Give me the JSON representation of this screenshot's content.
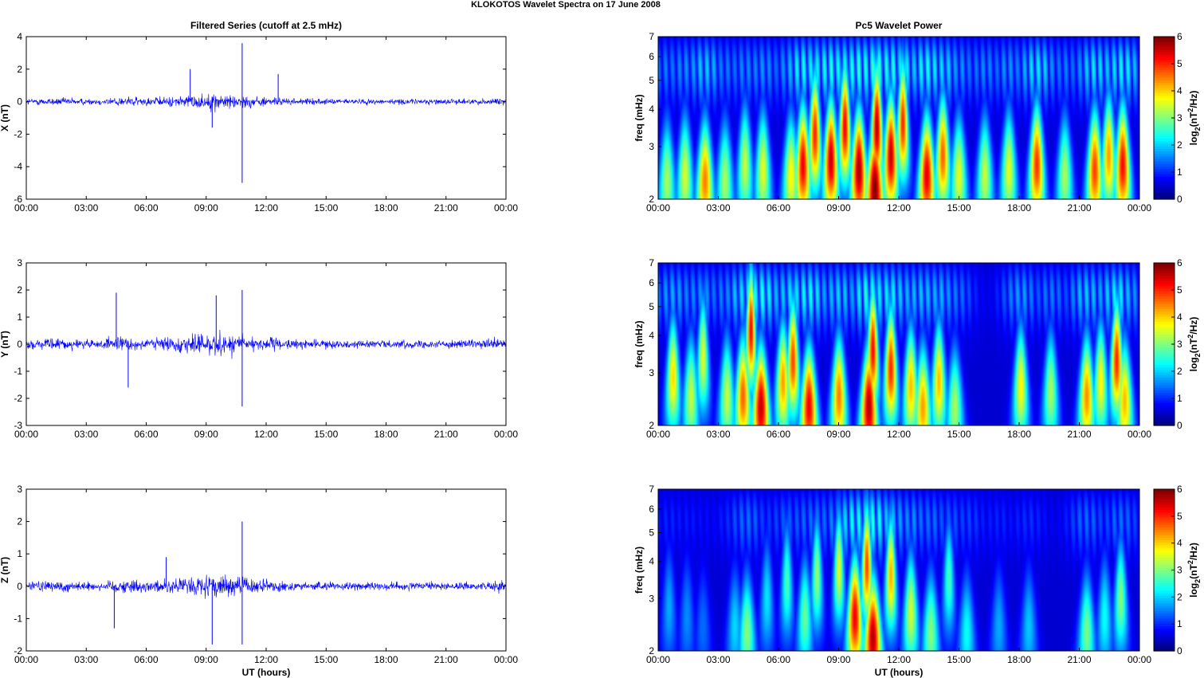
{
  "figure": {
    "suptitle": "KLOKOTOS Wavelet Spectra on 17 June      2008",
    "left_title": "Filtered Series (cutoff at 2.5 mHz)",
    "right_title": "Pc5 Wavelet Power",
    "xlabel": "UT (hours)",
    "freq_ylabel": "freq (mHz)",
    "colorbar_label_base": "log",
    "colorbar_label_sub": "2",
    "colorbar_label_inner": "(nT",
    "colorbar_label_sup": "2",
    "colorbar_label_tail": "/Hz)"
  },
  "chart_data": [
    {
      "type": "line",
      "panel": "X",
      "title": "Filtered Series (cutoff at 2.5 mHz)",
      "ylabel": "X (nT)",
      "xlabel": "",
      "x_ticks": [
        "00:00",
        "03:00",
        "06:00",
        "09:00",
        "12:00",
        "15:00",
        "18:00",
        "21:00",
        "00:00"
      ],
      "xlim_hours": [
        0,
        24
      ],
      "ylim": [
        -6,
        4
      ],
      "y_ticks": [
        -6,
        -4,
        -2,
        0,
        2,
        4
      ],
      "color": "#0000ff",
      "extremes": [
        {
          "t_hours": 10.8,
          "value": 3.6
        },
        {
          "t_hours": 10.8,
          "value": -5.0
        },
        {
          "t_hours": 8.2,
          "value": 2.0
        },
        {
          "t_hours": 12.6,
          "value": 1.7
        },
        {
          "t_hours": 9.3,
          "value": -1.6
        }
      ]
    },
    {
      "type": "line",
      "panel": "Y",
      "ylabel": "Y (nT)",
      "xlabel": "",
      "x_ticks": [
        "00:00",
        "03:00",
        "06:00",
        "09:00",
        "12:00",
        "15:00",
        "18:00",
        "21:00",
        "00:00"
      ],
      "xlim_hours": [
        0,
        24
      ],
      "ylim": [
        -3,
        3
      ],
      "y_ticks": [
        -3,
        -2,
        -1,
        0,
        1,
        2,
        3
      ],
      "color": "#0000ff",
      "extremes": [
        {
          "t_hours": 10.8,
          "value": 2.0
        },
        {
          "t_hours": 10.8,
          "value": -2.3
        },
        {
          "t_hours": 4.5,
          "value": 1.9
        },
        {
          "t_hours": 9.5,
          "value": 1.8
        },
        {
          "t_hours": 5.1,
          "value": -1.6
        }
      ]
    },
    {
      "type": "line",
      "panel": "Z",
      "ylabel": "Z (nT)",
      "xlabel": "UT (hours)",
      "x_ticks": [
        "00:00",
        "03:00",
        "06:00",
        "09:00",
        "12:00",
        "15:00",
        "18:00",
        "21:00",
        "00:00"
      ],
      "xlim_hours": [
        0,
        24
      ],
      "ylim": [
        -2,
        3
      ],
      "y_ticks": [
        -2,
        -1,
        0,
        1,
        2,
        3
      ],
      "color": "#0000ff",
      "extremes": [
        {
          "t_hours": 10.8,
          "value": 2.0
        },
        {
          "t_hours": 10.8,
          "value": -1.8
        },
        {
          "t_hours": 9.3,
          "value": -1.8
        },
        {
          "t_hours": 4.4,
          "value": -1.3
        },
        {
          "t_hours": 7.0,
          "value": 0.9
        }
      ]
    },
    {
      "type": "heatmap",
      "panel": "X",
      "title": "Pc5 Wavelet Power",
      "ylabel": "freq (mHz)",
      "xlabel": "",
      "x_ticks": [
        "00:00",
        "03:00",
        "06:00",
        "09:00",
        "12:00",
        "15:00",
        "18:00",
        "21:00",
        "00:00"
      ],
      "xlim_hours": [
        0,
        24
      ],
      "ylim_mhz": [
        2,
        7
      ],
      "y_scale": "log",
      "y_ticks": [
        2,
        3,
        4,
        5,
        6,
        7
      ],
      "colorbar": {
        "range": [
          0,
          6
        ],
        "ticks": [
          0,
          1,
          2,
          3,
          4,
          5,
          6
        ],
        "colormap": "jet"
      },
      "blobs": [
        {
          "t_hours": 0.4,
          "f_mhz": 2.3,
          "power": 3.0
        },
        {
          "t_hours": 1.3,
          "f_mhz": 2.4,
          "power": 3.3
        },
        {
          "t_hours": 2.3,
          "f_mhz": 2.3,
          "power": 4.4
        },
        {
          "t_hours": 3.3,
          "f_mhz": 2.3,
          "power": 3.0
        },
        {
          "t_hours": 4.3,
          "f_mhz": 2.6,
          "power": 3.2
        },
        {
          "t_hours": 5.2,
          "f_mhz": 2.5,
          "power": 3.4
        },
        {
          "t_hours": 6.6,
          "f_mhz": 2.4,
          "power": 3.6
        },
        {
          "t_hours": 7.2,
          "f_mhz": 2.6,
          "power": 5.3
        },
        {
          "t_hours": 7.8,
          "f_mhz": 3.3,
          "power": 5.0
        },
        {
          "t_hours": 8.6,
          "f_mhz": 2.7,
          "power": 5.6
        },
        {
          "t_hours": 9.3,
          "f_mhz": 3.5,
          "power": 5.3
        },
        {
          "t_hours": 10.0,
          "f_mhz": 2.5,
          "power": 5.8
        },
        {
          "t_hours": 10.8,
          "f_mhz": 2.15,
          "power": 6.0
        },
        {
          "t_hours": 10.9,
          "f_mhz": 3.5,
          "power": 5.7
        },
        {
          "t_hours": 11.6,
          "f_mhz": 2.8,
          "power": 5.6
        },
        {
          "t_hours": 12.2,
          "f_mhz": 3.6,
          "power": 5.0
        },
        {
          "t_hours": 13.4,
          "f_mhz": 2.4,
          "power": 5.4
        },
        {
          "t_hours": 14.2,
          "f_mhz": 2.8,
          "power": 4.6
        },
        {
          "t_hours": 15.0,
          "f_mhz": 2.4,
          "power": 3.4
        },
        {
          "t_hours": 16.3,
          "f_mhz": 2.4,
          "power": 3.2
        },
        {
          "t_hours": 17.5,
          "f_mhz": 2.5,
          "power": 3.4
        },
        {
          "t_hours": 18.9,
          "f_mhz": 2.6,
          "power": 4.9
        },
        {
          "t_hours": 20.3,
          "f_mhz": 2.4,
          "power": 3.0
        },
        {
          "t_hours": 21.8,
          "f_mhz": 2.5,
          "power": 4.8
        },
        {
          "t_hours": 22.5,
          "f_mhz": 2.8,
          "power": 4.2
        },
        {
          "t_hours": 23.2,
          "f_mhz": 2.6,
          "power": 5.2
        }
      ]
    },
    {
      "type": "heatmap",
      "panel": "Y",
      "ylabel": "freq (mHz)",
      "xlabel": "",
      "x_ticks": [
        "00:00",
        "03:00",
        "06:00",
        "09:00",
        "12:00",
        "15:00",
        "18:00",
        "21:00",
        "00:00"
      ],
      "xlim_hours": [
        0,
        24
      ],
      "ylim_mhz": [
        2,
        7
      ],
      "y_scale": "log",
      "y_ticks": [
        2,
        3,
        4,
        5,
        6,
        7
      ],
      "colorbar": {
        "range": [
          0,
          6
        ],
        "ticks": [
          0,
          1,
          2,
          3,
          4,
          5,
          6
        ],
        "colormap": "jet"
      },
      "blobs": [
        {
          "t_hours": 0.7,
          "f_mhz": 2.9,
          "power": 3.8
        },
        {
          "t_hours": 1.6,
          "f_mhz": 2.5,
          "power": 3.2
        },
        {
          "t_hours": 2.2,
          "f_mhz": 3.4,
          "power": 3.4
        },
        {
          "t_hours": 3.4,
          "f_mhz": 2.5,
          "power": 3.2
        },
        {
          "t_hours": 4.2,
          "f_mhz": 2.5,
          "power": 4.6
        },
        {
          "t_hours": 4.6,
          "f_mhz": 4.2,
          "power": 5.3
        },
        {
          "t_hours": 5.1,
          "f_mhz": 2.3,
          "power": 5.6
        },
        {
          "t_hours": 6.2,
          "f_mhz": 2.8,
          "power": 4.2
        },
        {
          "t_hours": 6.7,
          "f_mhz": 3.3,
          "power": 4.8
        },
        {
          "t_hours": 7.5,
          "f_mhz": 2.3,
          "power": 5.3
        },
        {
          "t_hours": 9.0,
          "f_mhz": 2.5,
          "power": 4.4
        },
        {
          "t_hours": 10.5,
          "f_mhz": 2.3,
          "power": 5.7
        },
        {
          "t_hours": 10.7,
          "f_mhz": 3.6,
          "power": 5.2
        },
        {
          "t_hours": 11.6,
          "f_mhz": 3.1,
          "power": 5.0
        },
        {
          "t_hours": 12.6,
          "f_mhz": 2.7,
          "power": 4.0
        },
        {
          "t_hours": 13.2,
          "f_mhz": 2.3,
          "power": 4.2
        },
        {
          "t_hours": 14.0,
          "f_mhz": 2.8,
          "power": 4.0
        },
        {
          "t_hours": 14.8,
          "f_mhz": 2.3,
          "power": 3.0
        },
        {
          "t_hours": 18.1,
          "f_mhz": 2.7,
          "power": 3.6
        },
        {
          "t_hours": 19.6,
          "f_mhz": 2.6,
          "power": 3.0
        },
        {
          "t_hours": 21.4,
          "f_mhz": 2.5,
          "power": 4.3
        },
        {
          "t_hours": 22.1,
          "f_mhz": 2.8,
          "power": 3.6
        },
        {
          "t_hours": 22.9,
          "f_mhz": 3.3,
          "power": 5.0
        },
        {
          "t_hours": 23.3,
          "f_mhz": 2.4,
          "power": 4.0
        }
      ]
    },
    {
      "type": "heatmap",
      "panel": "Z",
      "ylabel": "freq (mHz)",
      "xlabel": "UT (hours)",
      "x_ticks": [
        "00:00",
        "03:00",
        "06:00",
        "09:00",
        "12:00",
        "15:00",
        "18:00",
        "21:00",
        "00:00"
      ],
      "xlim_hours": [
        0,
        24
      ],
      "ylim_mhz": [
        2,
        7
      ],
      "y_scale": "log",
      "y_ticks": [
        2,
        3,
        4,
        5,
        6,
        7
      ],
      "colorbar": {
        "range": [
          0,
          6
        ],
        "ticks": [
          0,
          1,
          2,
          3,
          4,
          5,
          6
        ],
        "colormap": "jet"
      },
      "blobs": [
        {
          "t_hours": 0.5,
          "f_mhz": 2.8,
          "power": 1.4
        },
        {
          "t_hours": 1.4,
          "f_mhz": 2.6,
          "power": 1.2
        },
        {
          "t_hours": 2.2,
          "f_mhz": 2.4,
          "power": 1.0
        },
        {
          "t_hours": 3.8,
          "f_mhz": 2.4,
          "power": 1.7
        },
        {
          "t_hours": 4.4,
          "f_mhz": 2.3,
          "power": 2.8
        },
        {
          "t_hours": 5.4,
          "f_mhz": 3.0,
          "power": 1.8
        },
        {
          "t_hours": 6.4,
          "f_mhz": 3.4,
          "power": 2.4
        },
        {
          "t_hours": 7.3,
          "f_mhz": 2.6,
          "power": 2.6
        },
        {
          "t_hours": 7.9,
          "f_mhz": 3.6,
          "power": 2.9
        },
        {
          "t_hours": 9.0,
          "f_mhz": 3.8,
          "power": 3.4
        },
        {
          "t_hours": 9.8,
          "f_mhz": 2.6,
          "power": 5.3
        },
        {
          "t_hours": 10.4,
          "f_mhz": 3.9,
          "power": 4.8
        },
        {
          "t_hours": 10.7,
          "f_mhz": 2.2,
          "power": 5.7
        },
        {
          "t_hours": 11.6,
          "f_mhz": 3.6,
          "power": 4.1
        },
        {
          "t_hours": 12.6,
          "f_mhz": 2.7,
          "power": 3.3
        },
        {
          "t_hours": 13.6,
          "f_mhz": 2.3,
          "power": 2.8
        },
        {
          "t_hours": 14.5,
          "f_mhz": 3.5,
          "power": 2.4
        },
        {
          "t_hours": 15.4,
          "f_mhz": 2.3,
          "power": 2.0
        },
        {
          "t_hours": 17.0,
          "f_mhz": 2.4,
          "power": 1.4
        },
        {
          "t_hours": 18.5,
          "f_mhz": 2.4,
          "power": 1.6
        },
        {
          "t_hours": 21.4,
          "f_mhz": 2.3,
          "power": 2.7
        },
        {
          "t_hours": 22.3,
          "f_mhz": 2.6,
          "power": 2.0
        },
        {
          "t_hours": 23.1,
          "f_mhz": 3.0,
          "power": 2.8
        }
      ]
    }
  ]
}
